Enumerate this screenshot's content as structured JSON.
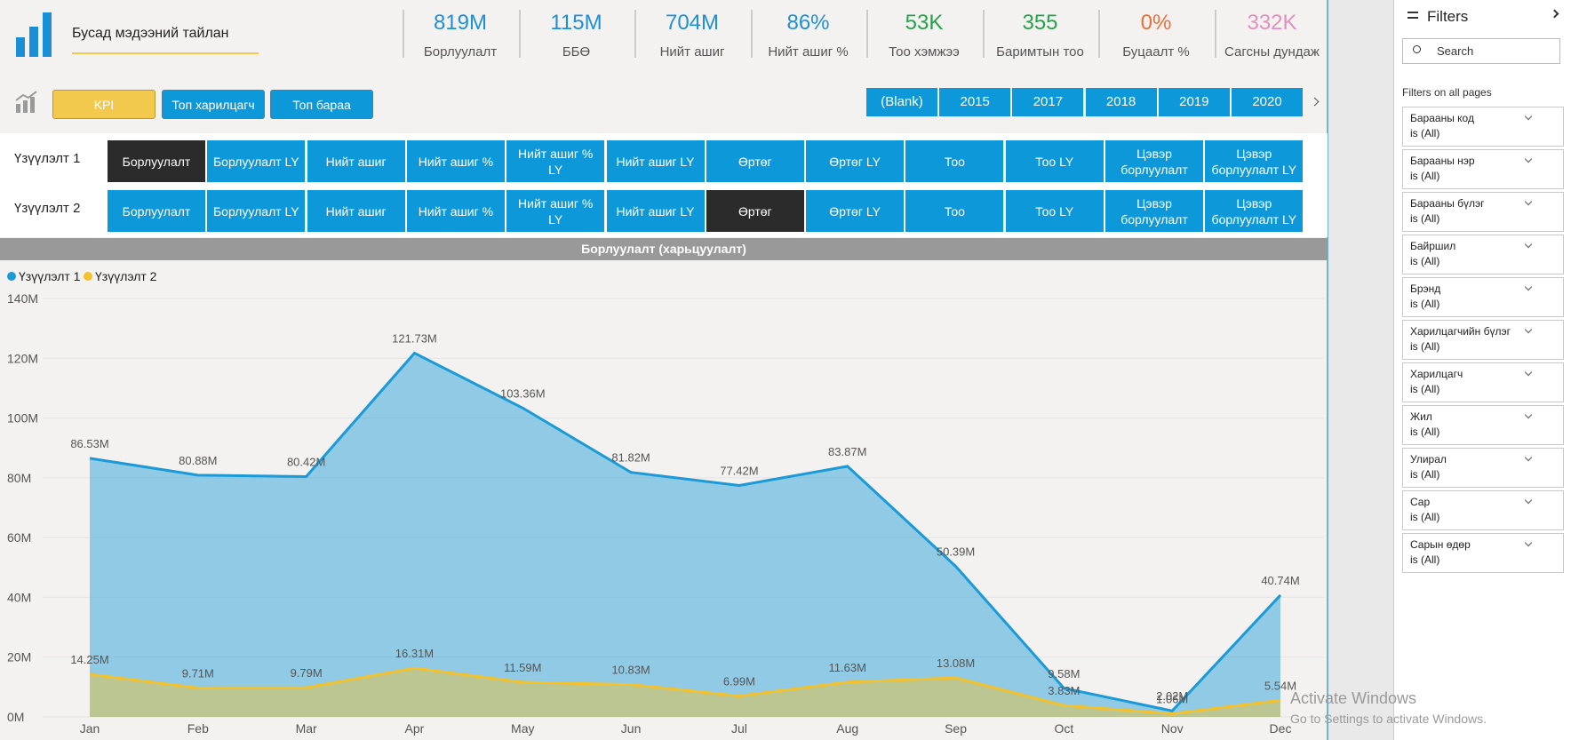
{
  "header": {
    "title": "Бусад мэдээний тайлан"
  },
  "kpis": [
    {
      "value": "819M",
      "label": "Борлуулалт",
      "color": "#1f8fd6"
    },
    {
      "value": "115M",
      "label": "ББӨ",
      "color": "#1f8fd6"
    },
    {
      "value": "704M",
      "label": "Нийт ашиг",
      "color": "#1f8fd6"
    },
    {
      "value": "86%",
      "label": "Нийт ашиг %",
      "color": "#1f8fd6"
    },
    {
      "value": "53K",
      "label": "Тоо хэмжээ",
      "color": "#23a34a"
    },
    {
      "value": "355",
      "label": "Баримтын тоо",
      "color": "#23a34a"
    },
    {
      "value": "0%",
      "label": "Буцаалт %",
      "color": "#e8703a"
    },
    {
      "value": "332K",
      "label": "Сагсны дундаж",
      "color": "#e58fc0"
    }
  ],
  "nav": {
    "buttons": [
      "KPI",
      "Топ харилцагч",
      "Топ бараа"
    ],
    "selected": 0
  },
  "years": [
    "(Blank)",
    "2015",
    "2017",
    "2018",
    "2019",
    "2020"
  ],
  "selector_rows": [
    {
      "label": "Үзүүлэлт 1",
      "selected": 0,
      "buttons": [
        "Борлуулалт",
        "Борлуулалт LY",
        "Нийт ашиг",
        "Нийт ашиг %",
        "Нийт ашиг % LY",
        "Нийт ашиг LY",
        "Өртөг",
        "Өртөг LY",
        "Тоо",
        "Тоо LY",
        "Цэвэр борлуулалт",
        "Цэвэр борлуулалт LY"
      ]
    },
    {
      "label": "Үзүүлэлт 2",
      "selected": 6,
      "buttons": [
        "Борлуулалт",
        "Борлуулалт LY",
        "Нийт ашиг",
        "Нийт ашиг %",
        "Нийт ашиг % LY",
        "Нийт ашиг LY",
        "Өртөг",
        "Өртөг LY",
        "Тоо",
        "Тоо LY",
        "Цэвэр борлуулалт",
        "Цэвэр борлуулалт LY"
      ]
    }
  ],
  "chart_data": {
    "type": "area",
    "title": "Борлуулалт (харьцуулалт)",
    "categories": [
      "Jan",
      "Feb",
      "Mar",
      "Apr",
      "May",
      "Jun",
      "Jul",
      "Aug",
      "Sep",
      "Oct",
      "Nov",
      "Dec"
    ],
    "series": [
      {
        "name": "Үзүүлэлт 1",
        "color": "#1a9ad6",
        "values": [
          86.53,
          80.88,
          80.42,
          121.73,
          103.36,
          81.82,
          77.42,
          83.87,
          50.39,
          9.58,
          2.02,
          40.74
        ],
        "value_labels": [
          "86.53M",
          "80.88M",
          "80.42M",
          "121.73M",
          "103.36M",
          "81.82M",
          "77.42M",
          "83.87M",
          "50.39M",
          "9.58M",
          "2.02M",
          "40.74M"
        ]
      },
      {
        "name": "Үзүүлэлт 2",
        "color": "#f2c12e",
        "values": [
          14.25,
          9.71,
          9.79,
          16.31,
          11.59,
          10.83,
          6.99,
          11.63,
          13.08,
          3.83,
          1.06,
          5.54
        ],
        "value_labels": [
          "14.25M",
          "9.71M",
          "9.79M",
          "16.31M",
          "11.59M",
          "10.83M",
          "6.99M",
          "11.63M",
          "13.08M",
          "3.83M",
          "1.06M",
          "5.54M"
        ]
      }
    ],
    "ylim": [
      0,
      140
    ],
    "yticks": [
      {
        "value": 0,
        "label": "0M"
      },
      {
        "value": 20,
        "label": "20M"
      },
      {
        "value": 40,
        "label": "40M"
      },
      {
        "value": 60,
        "label": "60M"
      },
      {
        "value": 80,
        "label": "80M"
      },
      {
        "value": 100,
        "label": "100M"
      },
      {
        "value": 120,
        "label": "120M"
      },
      {
        "value": 140,
        "label": "140M"
      }
    ],
    "grid": true
  },
  "filters": {
    "title": "Filters",
    "search": "Search",
    "section": "Filters on all pages",
    "items": [
      {
        "name": "Барааны код",
        "state": "is (All)"
      },
      {
        "name": "Барааны нэр",
        "state": "is (All)"
      },
      {
        "name": "Барааны бүлэг",
        "state": "is (All)"
      },
      {
        "name": "Байршил",
        "state": "is (All)"
      },
      {
        "name": "Брэнд",
        "state": "is (All)"
      },
      {
        "name": "Харилцагчийн бүлэг",
        "state": "is (All)"
      },
      {
        "name": "Харилцагч",
        "state": "is (All)"
      },
      {
        "name": "Жил",
        "state": "is (All)"
      },
      {
        "name": "Улирал",
        "state": "is (All)"
      },
      {
        "name": "Сар",
        "state": "is (All)"
      },
      {
        "name": "Сарын өдөр",
        "state": "is (All)"
      }
    ]
  },
  "watermark": {
    "title": "Activate Windows",
    "text": "Go to Settings to activate Windows."
  }
}
